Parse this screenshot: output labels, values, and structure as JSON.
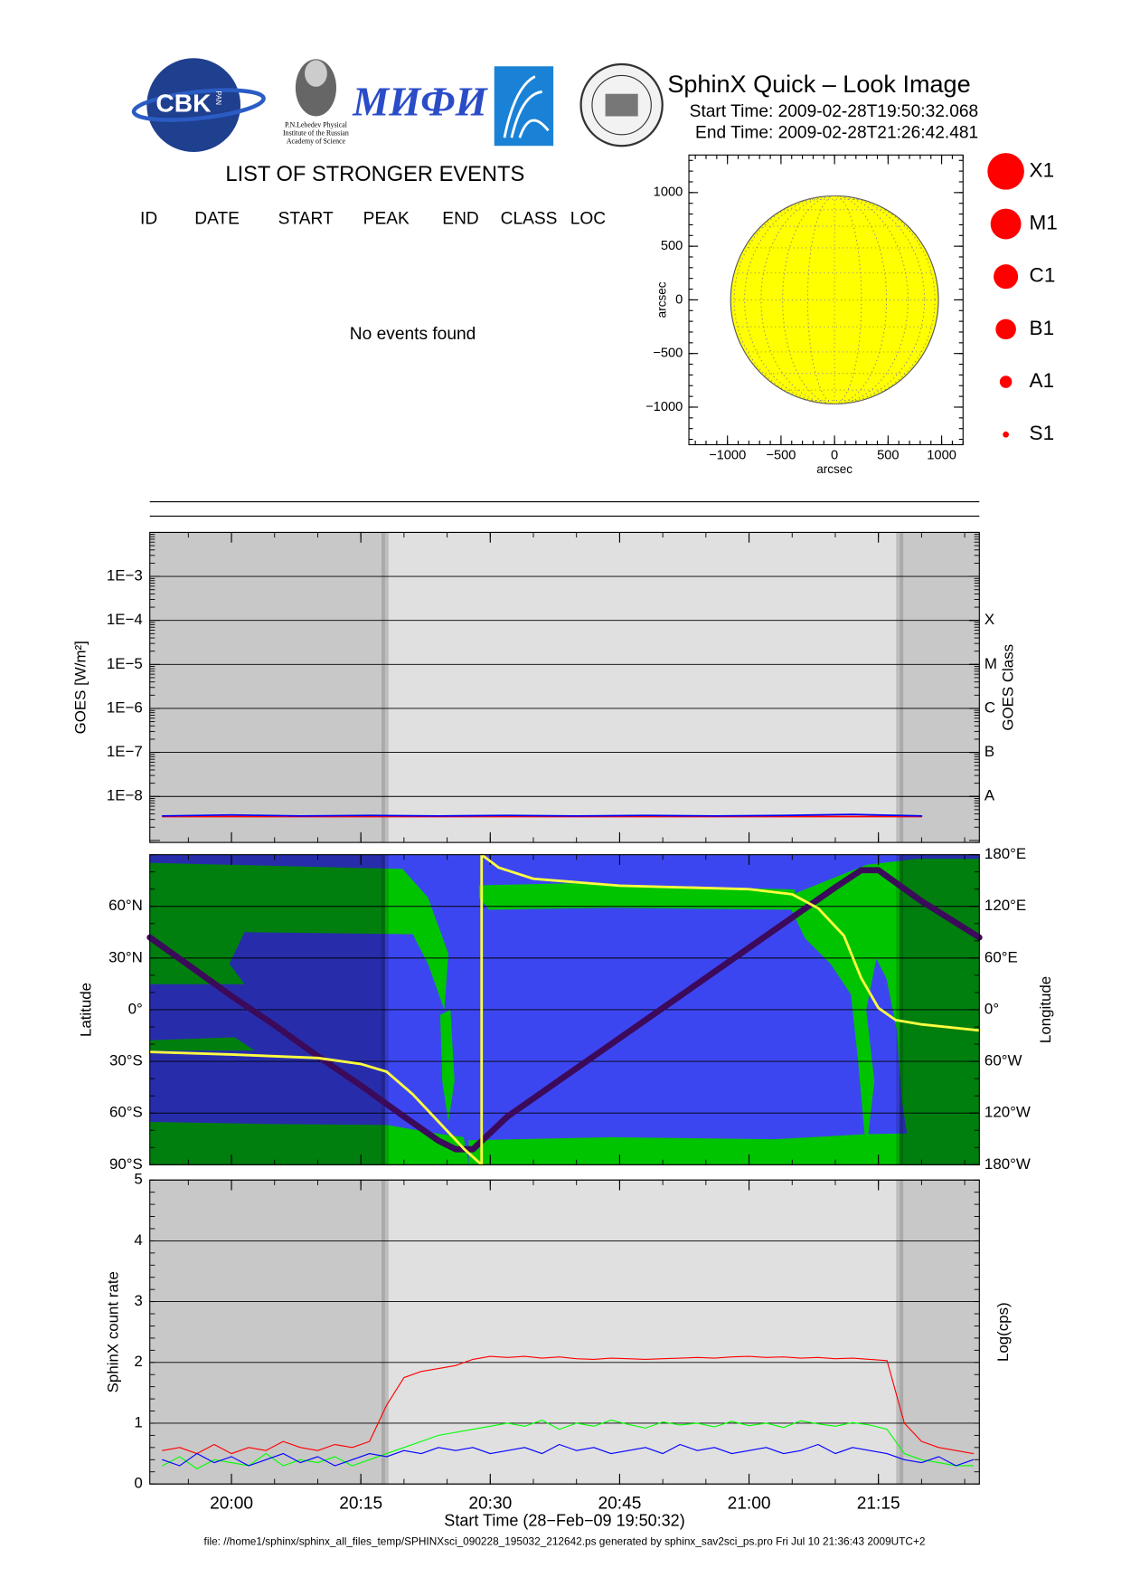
{
  "header": {
    "logos": {
      "cbk": "CBK",
      "pan": "PAN",
      "lebedev": [
        "P.N.Lebedev Physical",
        "Institute of the Russian",
        "Academy of Science"
      ],
      "mephi": "МИФИ"
    },
    "title": "SphinX Quick – Look Image",
    "start_time": "Start Time: 2009-02-28T19:50:32.068",
    "end_time": "End Time: 2009-02-28T21:26:42.481"
  },
  "events": {
    "title": "LIST OF STRONGER EVENTS",
    "columns": [
      "ID",
      "DATE",
      "START",
      "PEAK",
      "END",
      "CLASS",
      "LOC"
    ],
    "message": "No events found"
  },
  "class_legend": [
    "X1",
    "M1",
    "C1",
    "B1",
    "A1",
    "S1"
  ],
  "chart_data": [
    {
      "type": "disk",
      "xlabel": "arcsec",
      "ylabel": "arcsec",
      "color": "#ffff00",
      "solar_radius": 970,
      "xlim": [
        -1360,
        1200
      ],
      "ylim": [
        -1350,
        1350
      ],
      "xticks": [
        {
          "value": -1000,
          "label": "−1000"
        },
        {
          "value": -500,
          "label": "−500"
        },
        0,
        500,
        1000
      ],
      "yticks": [
        {
          "value": -1000,
          "label": "−1000"
        },
        {
          "value": -500,
          "label": "−500"
        },
        0,
        500,
        1000
      ]
    },
    {
      "type": "line",
      "ylabel": "GOES [W/m²]",
      "y2label": "GOES Class",
      "log_y": true,
      "grid": true,
      "xlim": [
        "19:50:32",
        "21:26:42"
      ],
      "ylim": [
        9e-10,
        0.01
      ],
      "y2lim": [
        9e-10,
        0.01
      ],
      "yticks": [
        {
          "value": 1e-08,
          "label": "1E−8"
        },
        {
          "value": 1e-07,
          "label": "1E−7"
        },
        {
          "value": 1e-06,
          "label": "1E−6"
        },
        {
          "value": 1e-05,
          "label": "1E−5"
        },
        {
          "value": 0.0001,
          "label": "1E−4"
        },
        {
          "value": 0.001,
          "label": "1E−3"
        }
      ],
      "y2ticks": [
        {
          "value": 1e-08,
          "label": "A"
        },
        {
          "value": 1e-07,
          "label": "B"
        },
        {
          "value": 1e-06,
          "label": "C"
        },
        {
          "value": 1e-05,
          "label": "M"
        },
        {
          "value": 0.0001,
          "label": "X"
        }
      ],
      "night": [
        [
          "19:50:32",
          "20:17:48"
        ],
        [
          "21:17:28",
          "21:26:42"
        ]
      ],
      "night_color": "#c8c8c8",
      "x": [
        "19:52",
        "20:00",
        "20:08",
        "20:16",
        "20:24",
        "20:32",
        "20:40",
        "20:48",
        "20:56",
        "21:04",
        "21:12",
        "21:20"
      ],
      "series": [
        {
          "color": "#ff0000",
          "values": [
            3.5e-09,
            3.5e-09,
            3.5e-09,
            3.5e-09,
            3.5e-09,
            3.5e-09,
            3.5e-09,
            3.5e-09,
            3.5e-09,
            3.5e-09,
            3.5e-09,
            3.5e-09
          ]
        },
        {
          "color": "#0000ff",
          "values": [
            3.6e-09,
            3.8e-09,
            3.6e-09,
            3.7e-09,
            3.6e-09,
            3.7e-09,
            3.6e-09,
            3.7e-09,
            3.6e-09,
            3.7e-09,
            3.9e-09,
            3.6e-09
          ]
        }
      ]
    },
    {
      "type": "line",
      "ylabel": "Latitude",
      "y2label": "Longitude",
      "grid": true,
      "xlim": [
        "19:50:32",
        "21:26:42"
      ],
      "ylim": [
        -90,
        90
      ],
      "y2lim": [
        -180,
        180
      ],
      "yticks": [
        {
          "value": -90,
          "label": "90°S"
        },
        {
          "value": -60,
          "label": "60°S"
        },
        {
          "value": -30,
          "label": "30°S"
        },
        {
          "value": 0,
          "label": "0°"
        },
        {
          "value": 30,
          "label": "30°N"
        },
        {
          "value": 60,
          "label": "60°N"
        }
      ],
      "y2ticks": [
        {
          "value": -180,
          "label": "180°W"
        },
        {
          "value": -120,
          "label": "120°W"
        },
        {
          "value": -60,
          "label": "60°W"
        },
        {
          "value": 0,
          "label": "0°"
        },
        {
          "value": 60,
          "label": "60°E"
        },
        {
          "value": 120,
          "label": "120°E"
        },
        {
          "value": 180,
          "label": "180°E"
        }
      ],
      "night": [
        [
          "19:50:32",
          "20:17:48"
        ],
        [
          "21:17:28",
          "21:26:42"
        ]
      ],
      "night_color": "rgba(0,0,40,0.35)",
      "series": [
        {
          "color": "#3c0a5a",
          "x": [
            "19:50:32",
            "19:55",
            "20:00",
            "20:05",
            "20:10",
            "20:15",
            "20:20",
            "20:24",
            "20:26",
            "20:28",
            "20:32",
            "20:40",
            "20:50",
            "21:00",
            "21:10",
            "21:13",
            "21:15",
            "21:20",
            "21:26:42"
          ],
          "values": [
            42,
            26,
            8,
            -9,
            -27,
            -44,
            -62,
            -76,
            -81,
            -81,
            -62,
            -34,
            1,
            36,
            71,
            81,
            81,
            63,
            42
          ]
        },
        {
          "color": "#ffff40",
          "axis": "y2",
          "x": [
            "19:50:32",
            "20:00",
            "20:10",
            "20:15",
            "20:18",
            "20:21",
            "20:24",
            "20:27",
            "20:29",
            "20:29",
            "20:31",
            "20:35",
            "20:45",
            "21:00",
            "21:05",
            "21:08",
            "21:11",
            "21:13",
            "21:15",
            "21:17",
            "21:20",
            "21:26:42"
          ],
          "values": [
            -49,
            -52,
            -56,
            -63,
            -72,
            -98,
            -130,
            -162,
            -180,
            180,
            165,
            152,
            144,
            140,
            134,
            118,
            86,
            37,
            2,
            -12,
            -17,
            -24
          ]
        }
      ]
    },
    {
      "type": "line",
      "ylabel": "SphinX count rate",
      "y2label": "Log(cps)",
      "xlabel": "Start Time (28−Feb−09 19:50:32)",
      "grid": true,
      "xlim": [
        "19:50:32",
        "21:26:42"
      ],
      "ylim": [
        0,
        5
      ],
      "yticks": [
        0,
        1,
        2,
        3,
        4,
        5
      ],
      "xticks": [
        "20:00",
        "20:15",
        "20:30",
        "20:45",
        "21:00",
        "21:15"
      ],
      "night": [
        [
          "19:50:32",
          "20:17:48"
        ],
        [
          "21:17:28",
          "21:26:42"
        ]
      ],
      "night_color": "#c8c8c8",
      "x": [
        "19:52",
        "19:54",
        "19:56",
        "19:58",
        "20:00",
        "20:02",
        "20:04",
        "20:06",
        "20:08",
        "20:10",
        "20:12",
        "20:14",
        "20:16",
        "20:18",
        "20:20",
        "20:22",
        "20:24",
        "20:26",
        "20:28",
        "20:30",
        "20:32",
        "20:34",
        "20:36",
        "20:38",
        "20:40",
        "20:42",
        "20:44",
        "20:46",
        "20:48",
        "20:50",
        "20:52",
        "20:54",
        "20:56",
        "20:58",
        "21:00",
        "21:02",
        "21:04",
        "21:06",
        "21:08",
        "21:10",
        "21:12",
        "21:14",
        "21:16",
        "21:18",
        "21:20",
        "21:22",
        "21:24",
        "21:26"
      ],
      "series": [
        {
          "color": "#ff0000",
          "values": [
            0.55,
            0.6,
            0.5,
            0.65,
            0.5,
            0.6,
            0.55,
            0.7,
            0.6,
            0.55,
            0.65,
            0.6,
            0.7,
            1.3,
            1.75,
            1.85,
            1.9,
            1.95,
            2.05,
            2.1,
            2.08,
            2.1,
            2.07,
            2.09,
            2.06,
            2.05,
            2.07,
            2.06,
            2.05,
            2.06,
            2.07,
            2.08,
            2.07,
            2.09,
            2.1,
            2.08,
            2.09,
            2.07,
            2.08,
            2.06,
            2.07,
            2.05,
            2.03,
            1.0,
            0.7,
            0.6,
            0.55,
            0.5
          ]
        },
        {
          "color": "#00ff00",
          "values": [
            0.3,
            0.45,
            0.25,
            0.4,
            0.35,
            0.3,
            0.5,
            0.3,
            0.4,
            0.35,
            0.45,
            0.3,
            0.4,
            0.5,
            0.6,
            0.7,
            0.8,
            0.85,
            0.9,
            0.95,
            1.0,
            0.95,
            1.05,
            0.9,
            1.0,
            0.95,
            1.05,
            0.98,
            0.92,
            1.02,
            0.97,
            1.0,
            0.94,
            1.03,
            0.96,
            1.0,
            0.93,
            1.04,
            0.99,
            0.95,
            1.01,
            0.97,
            0.9,
            0.5,
            0.4,
            0.35,
            0.3,
            0.3
          ]
        },
        {
          "color": "#0000ff",
          "values": [
            0.4,
            0.3,
            0.5,
            0.35,
            0.45,
            0.3,
            0.4,
            0.5,
            0.35,
            0.45,
            0.3,
            0.4,
            0.5,
            0.45,
            0.55,
            0.5,
            0.6,
            0.55,
            0.6,
            0.5,
            0.55,
            0.6,
            0.5,
            0.65,
            0.55,
            0.6,
            0.5,
            0.55,
            0.6,
            0.5,
            0.65,
            0.55,
            0.6,
            0.5,
            0.55,
            0.6,
            0.5,
            0.55,
            0.65,
            0.5,
            0.6,
            0.55,
            0.5,
            0.4,
            0.35,
            0.45,
            0.3,
            0.4
          ]
        }
      ]
    }
  ],
  "footer": "file: //home1/sphinx/sphinx_all_files_temp/SPHINXsci_090228_195032_212642.ps generated by sphinx_sav2sci_ps.pro Fri Jul 10 21:36:43 2009UTC+2"
}
